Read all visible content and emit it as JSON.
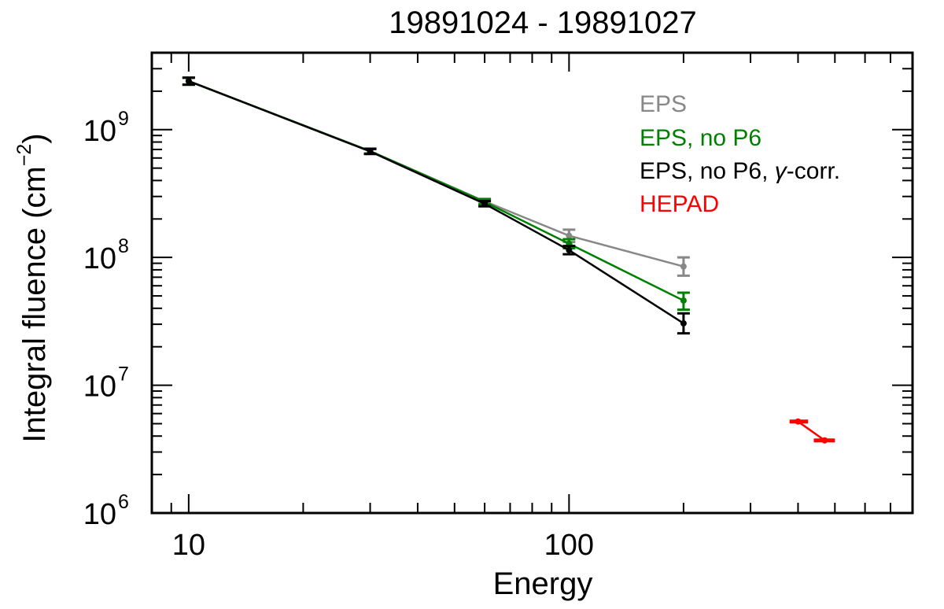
{
  "chart_data": {
    "type": "line",
    "title": "19891024 - 19891027",
    "xlabel": "Energy",
    "ylabel": {
      "base": "Integral fluence (cm",
      "exp": "−2",
      "close": ")"
    },
    "xscale": "log",
    "yscale": "log",
    "xlim": [
      8,
      800
    ],
    "ylim": [
      1000000,
      4000000000
    ],
    "x_ticks": [
      {
        "value": 10,
        "label": "10"
      },
      {
        "value": 100,
        "label": "100"
      }
    ],
    "y_ticks": [
      {
        "value": 1000000,
        "base": "10",
        "exp": "6"
      },
      {
        "value": 10000000,
        "base": "10",
        "exp": "7"
      },
      {
        "value": 100000000,
        "base": "10",
        "exp": "8"
      },
      {
        "value": 1000000000,
        "base": "10",
        "exp": "9"
      }
    ],
    "legend_position": "top-right",
    "series": [
      {
        "name": "EPS",
        "label": "EPS",
        "color": "#888888",
        "x": [
          10,
          30,
          60,
          100,
          200
        ],
        "y": [
          2400000000,
          680000000,
          275000000,
          148000000,
          85000000
        ],
        "err_low": [
          2250000000,
          650000000,
          262000000,
          132000000,
          72000000
        ],
        "err_high": [
          2550000000,
          710000000,
          288000000,
          165000000,
          100000000
        ]
      },
      {
        "name": "EPS, no P6",
        "label": "EPS, no P6",
        "color": "#008000",
        "x": [
          10,
          30,
          60,
          100,
          200
        ],
        "y": [
          2400000000,
          680000000,
          272000000,
          128000000,
          46000000
        ],
        "err_low": [
          2250000000,
          650000000,
          260000000,
          118000000,
          39000000
        ],
        "err_high": [
          2550000000,
          710000000,
          285000000,
          139000000,
          53000000
        ]
      },
      {
        "name": "EPS, no P6, gamma-corr.",
        "label_parts": [
          "EPS, no P6, ",
          "γ",
          "-corr."
        ],
        "color": "#000000",
        "x": [
          10,
          30,
          60,
          100,
          200
        ],
        "y": [
          2400000000,
          675000000,
          263000000,
          114000000,
          30500000
        ],
        "err_low": [
          2250000000,
          645000000,
          251000000,
          106000000,
          25500000
        ],
        "err_high": [
          2550000000,
          705000000,
          276000000,
          123000000,
          36500000
        ]
      },
      {
        "name": "HEPAD",
        "label": "HEPAD",
        "color": "#ff0000",
        "x": [
          400,
          470
        ],
        "y": [
          5200000,
          3700000
        ],
        "x_low": [
          380,
          440
        ],
        "x_high": [
          425,
          500
        ]
      }
    ]
  }
}
